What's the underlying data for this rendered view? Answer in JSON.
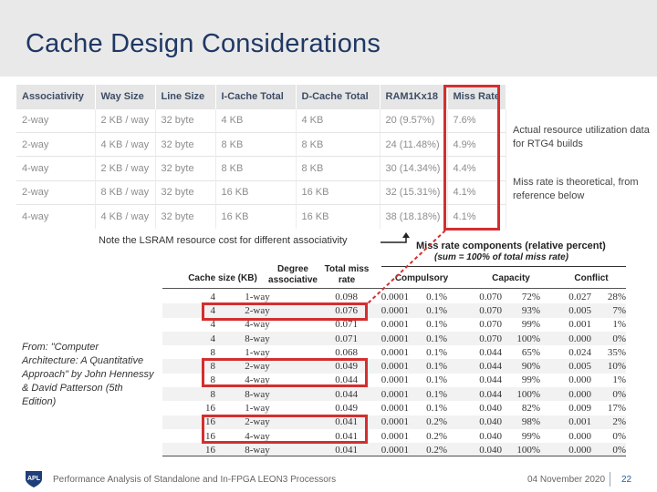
{
  "slide": {
    "title": "Cache Design Considerations",
    "note_right_1": "Actual resource utilization data for RTG4 builds",
    "note_right_2": "Miss rate is theoretical, from reference below",
    "note_lsram": "Note the LSRAM resource cost for different associativity",
    "from_note": "From: \"Computer Architecture: A Quantitative Approach\" by John Hennessy & David Patterson (5th Edition)"
  },
  "top_table": {
    "headers": [
      "Associativity",
      "Way Size",
      "Line Size",
      "I-Cache Total",
      "D-Cache Total",
      "RAM1Kx18",
      "Miss Rate"
    ],
    "rows": [
      [
        "2-way",
        "2 KB / way",
        "32 byte",
        "4 KB",
        "4 KB",
        "20 (9.57%)",
        "7.6%"
      ],
      [
        "2-way",
        "4 KB / way",
        "32 byte",
        "8 KB",
        "8 KB",
        "24 (11.48%)",
        "4.9%"
      ],
      [
        "4-way",
        "2 KB / way",
        "32 byte",
        "8 KB",
        "8 KB",
        "30 (14.34%)",
        "4.4%"
      ],
      [
        "2-way",
        "8 KB / way",
        "32 byte",
        "16 KB",
        "16 KB",
        "32 (15.31%)",
        "4.1%"
      ],
      [
        "4-way",
        "4 KB / way",
        "32 byte",
        "16 KB",
        "16 KB",
        "38 (18.18%)",
        "4.1%"
      ]
    ]
  },
  "bottom_table": {
    "group_title": "Miss rate components (relative percent)",
    "group_subtitle": "(sum = 100% of total miss rate)",
    "headers": {
      "cache_size": "Cache size (KB)",
      "degree": "Degree associative",
      "total_miss": "Total miss rate",
      "compulsory": "Compulsory",
      "capacity": "Capacity",
      "conflict": "Conflict"
    },
    "rows": [
      [
        "4",
        "1-way",
        "0.098",
        "0.0001",
        "0.1%",
        "0.070",
        "72%",
        "0.027",
        "28%"
      ],
      [
        "4",
        "2-way",
        "0.076",
        "0.0001",
        "0.1%",
        "0.070",
        "93%",
        "0.005",
        "7%"
      ],
      [
        "4",
        "4-way",
        "0.071",
        "0.0001",
        "0.1%",
        "0.070",
        "99%",
        "0.001",
        "1%"
      ],
      [
        "4",
        "8-way",
        "0.071",
        "0.0001",
        "0.1%",
        "0.070",
        "100%",
        "0.000",
        "0%"
      ],
      [
        "8",
        "1-way",
        "0.068",
        "0.0001",
        "0.1%",
        "0.044",
        "65%",
        "0.024",
        "35%"
      ],
      [
        "8",
        "2-way",
        "0.049",
        "0.0001",
        "0.1%",
        "0.044",
        "90%",
        "0.005",
        "10%"
      ],
      [
        "8",
        "4-way",
        "0.044",
        "0.0001",
        "0.1%",
        "0.044",
        "99%",
        "0.000",
        "1%"
      ],
      [
        "8",
        "8-way",
        "0.044",
        "0.0001",
        "0.1%",
        "0.044",
        "100%",
        "0.000",
        "0%"
      ],
      [
        "16",
        "1-way",
        "0.049",
        "0.0001",
        "0.1%",
        "0.040",
        "82%",
        "0.009",
        "17%"
      ],
      [
        "16",
        "2-way",
        "0.041",
        "0.0001",
        "0.2%",
        "0.040",
        "98%",
        "0.001",
        "2%"
      ],
      [
        "16",
        "4-way",
        "0.041",
        "0.0001",
        "0.2%",
        "0.040",
        "99%",
        "0.000",
        "0%"
      ],
      [
        "16",
        "8-way",
        "0.041",
        "0.0001",
        "0.2%",
        "0.040",
        "100%",
        "0.000",
        "0%"
      ]
    ]
  },
  "footer": {
    "logo_text": "APL",
    "text": "Performance Analysis of Standalone and In-FPGA LEON3 Processors",
    "date": "04 November 2020",
    "page": "22"
  },
  "colors": {
    "title": "#1f3864",
    "highlight": "#d32f2f"
  }
}
